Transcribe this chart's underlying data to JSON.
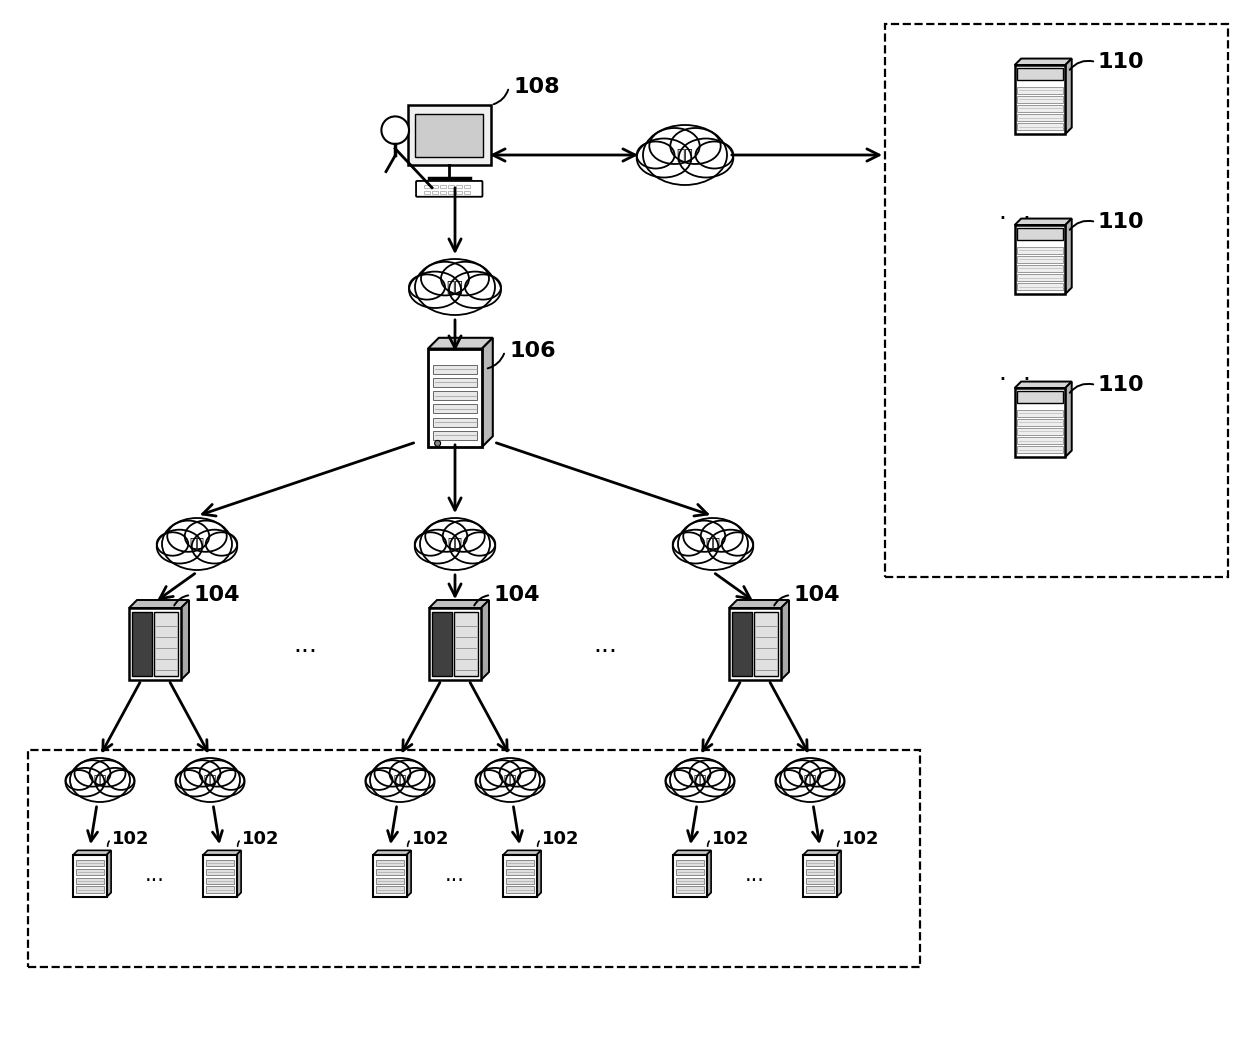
{
  "bg_color": "#ffffff",
  "label_108": "108",
  "label_110": "110",
  "label_106": "106",
  "label_104": "104",
  "label_102": "102",
  "network_label": "网络",
  "dots": "...",
  "figsize": [
    12.4,
    10.52
  ],
  "dpi": 100,
  "lw_main": 2.0,
  "arrow_ms": 22,
  "font_label": 16
}
